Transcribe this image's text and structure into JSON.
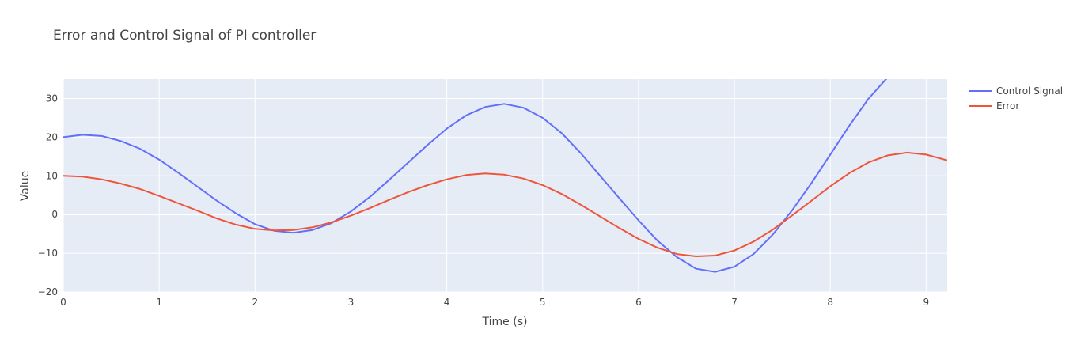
{
  "chart_data": {
    "type": "line",
    "title": "Error and Control Signal  of PI controller",
    "xlabel": "Time (s)",
    "ylabel": "Value",
    "xlim": [
      0,
      9.22
    ],
    "ylim": [
      -20,
      35
    ],
    "xticks": [
      0,
      1,
      2,
      3,
      4,
      5,
      6,
      7,
      8,
      9
    ],
    "yticks": [
      -20,
      -10,
      0,
      10,
      20,
      30
    ],
    "grid": true,
    "legend_position": "top-right",
    "colors": {
      "plot_bg": "#e5ecf6",
      "grid": "#ffffff"
    },
    "series": [
      {
        "name": "Control Signal",
        "color": "#636efa",
        "x": [
          0,
          0.2,
          0.4,
          0.6,
          0.8,
          1.0,
          1.2,
          1.4,
          1.6,
          1.8,
          2.0,
          2.2,
          2.4,
          2.6,
          2.8,
          3.0,
          3.2,
          3.4,
          3.6,
          3.8,
          4.0,
          4.2,
          4.4,
          4.6,
          4.8,
          5.0,
          5.2,
          5.4,
          5.6,
          5.8,
          6.0,
          6.2,
          6.4,
          6.6,
          6.8,
          7.0,
          7.2,
          7.4,
          7.6,
          7.8,
          8.0,
          8.2,
          8.4,
          8.6
        ],
        "y": [
          20.0,
          20.6,
          20.3,
          19.0,
          17.0,
          14.2,
          10.8,
          7.2,
          3.6,
          0.3,
          -2.5,
          -4.2,
          -4.7,
          -4.0,
          -2.2,
          0.8,
          4.6,
          9.0,
          13.5,
          18.0,
          22.2,
          25.6,
          27.8,
          28.6,
          27.6,
          25.0,
          21.0,
          15.8,
          10.0,
          4.2,
          -1.5,
          -6.8,
          -11.0,
          -14.0,
          -14.8,
          -13.5,
          -10.2,
          -5.2,
          1.0,
          8.0,
          15.5,
          23.0,
          30.0,
          35.5
        ]
      },
      {
        "name": "Error",
        "color": "#ef553b",
        "x": [
          0,
          0.2,
          0.4,
          0.6,
          0.8,
          1.0,
          1.2,
          1.4,
          1.6,
          1.8,
          2.0,
          2.2,
          2.4,
          2.6,
          2.8,
          3.0,
          3.2,
          3.4,
          3.6,
          3.8,
          4.0,
          4.2,
          4.4,
          4.6,
          4.8,
          5.0,
          5.2,
          5.4,
          5.6,
          5.8,
          6.0,
          6.2,
          6.4,
          6.6,
          6.8,
          7.0,
          7.2,
          7.4,
          7.6,
          7.8,
          8.0,
          8.2,
          8.4,
          8.6,
          8.8,
          9.0,
          9.22
        ],
        "y": [
          10.0,
          9.8,
          9.1,
          8.0,
          6.6,
          4.8,
          2.9,
          1.0,
          -1.0,
          -2.6,
          -3.7,
          -4.1,
          -4.0,
          -3.3,
          -2.0,
          -0.3,
          1.7,
          3.8,
          5.8,
          7.6,
          9.1,
          10.2,
          10.6,
          10.3,
          9.3,
          7.6,
          5.3,
          2.5,
          -0.5,
          -3.5,
          -6.3,
          -8.6,
          -10.2,
          -10.8,
          -10.6,
          -9.3,
          -7.0,
          -3.9,
          -0.3,
          3.5,
          7.3,
          10.7,
          13.5,
          15.3,
          16.0,
          15.5,
          14.0
        ]
      }
    ]
  }
}
